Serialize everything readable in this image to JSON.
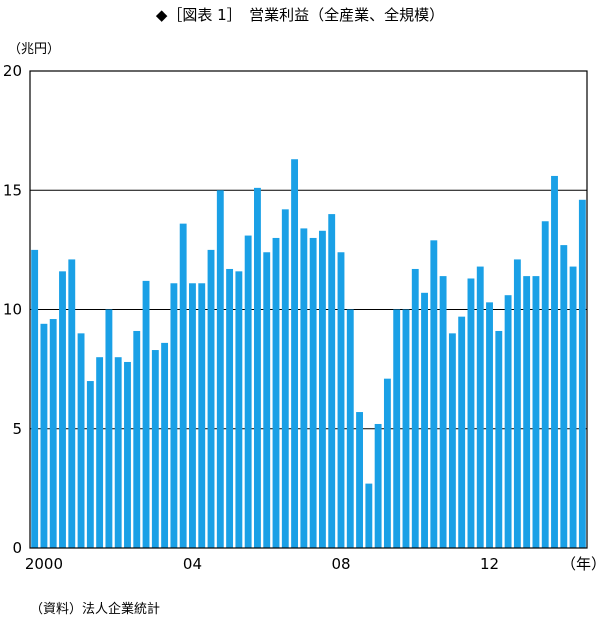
{
  "chart_data": {
    "type": "bar",
    "title": "◆［図表 1］　営業利益（全産業、全規模）",
    "ylabel": "（兆円）",
    "xlabel": "（年）",
    "source": "（資料）法人企業統計",
    "ylim": [
      0,
      20
    ],
    "yticks": [
      0,
      5,
      10,
      15,
      20
    ],
    "xtick_labels": [
      {
        "label": "2000",
        "index": 1
      },
      {
        "label": "04",
        "index": 17
      },
      {
        "label": "08",
        "index": 33
      },
      {
        "label": "12",
        "index": 49
      }
    ],
    "bar_color": "#1aa0e6",
    "grid": true,
    "values": [
      12.5,
      9.4,
      9.6,
      11.6,
      12.1,
      9.0,
      7.0,
      8.0,
      10.0,
      8.0,
      7.8,
      9.1,
      11.2,
      8.3,
      8.6,
      11.1,
      13.6,
      11.1,
      11.1,
      12.5,
      15.0,
      11.7,
      11.6,
      13.1,
      15.1,
      12.4,
      13.0,
      14.2,
      16.3,
      13.4,
      13.0,
      13.3,
      14.0,
      12.4,
      10.0,
      5.7,
      2.7,
      5.2,
      7.1,
      10.0,
      10.0,
      11.7,
      10.7,
      12.9,
      11.4,
      9.0,
      9.7,
      11.3,
      11.8,
      10.3,
      9.1,
      10.6,
      12.1,
      11.4,
      11.4,
      13.7,
      15.6,
      12.7,
      11.8,
      14.6
    ]
  }
}
